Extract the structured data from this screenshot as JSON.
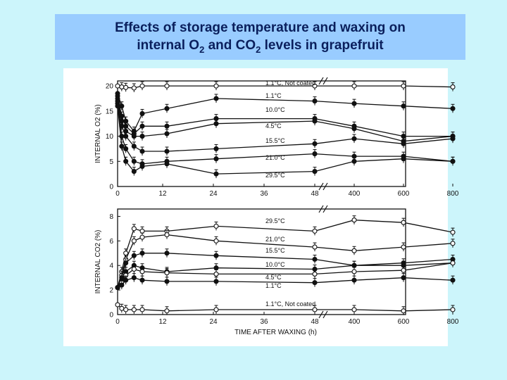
{
  "title": {
    "line1": "Effects of storage temperature and waxing on",
    "line2_a": "internal O",
    "line2_sub1": "2",
    "line2_b": " and CO",
    "line2_sub2": "2",
    "line2_c": " levels in grapefruit"
  },
  "colors": {
    "background": "#ccf5fb",
    "title_box": "#99ccff",
    "title_text": "#0a1f5c",
    "ink": "#111111"
  },
  "chart_data": [
    {
      "type": "line",
      "ylabel": "INTERNAL O2 (%)",
      "xlabel": "",
      "x_ticks": [
        "0",
        "12",
        "24",
        "36",
        "48",
        "400",
        "600",
        "800"
      ],
      "y_ticks": [
        "0",
        "5",
        "10",
        "15",
        "20"
      ],
      "ylim": [
        0,
        21
      ],
      "x": [
        0,
        1,
        2,
        4,
        6,
        12,
        24,
        48,
        400,
        600,
        800
      ],
      "series": [
        {
          "name": "1.1°C, Not coated",
          "marker": "open",
          "values": [
            20,
            19.8,
            19.7,
            19.6,
            20,
            20,
            20,
            20,
            20,
            20,
            19.8
          ]
        },
        {
          "name": "1.1°C",
          "marker": "filled",
          "values": [
            18.5,
            16,
            13,
            11,
            14.5,
            15.5,
            17.5,
            17,
            16.5,
            16,
            15.5
          ]
        },
        {
          "name": "10.0°C",
          "marker": "filled",
          "values": [
            18,
            14,
            12,
            10.5,
            12,
            12,
            13.5,
            13.5,
            12,
            10,
            10
          ]
        },
        {
          "name": "4.5°C",
          "marker": "filled",
          "values": [
            17.5,
            13,
            11,
            10,
            10,
            10.5,
            12.5,
            13,
            11.5,
            9,
            10
          ]
        },
        {
          "name": "15.5°C",
          "marker": "filled",
          "values": [
            17,
            12,
            10,
            8,
            7,
            7,
            7.5,
            8.5,
            9.5,
            8.5,
            9.5
          ]
        },
        {
          "name": "21.0°C",
          "marker": "filled",
          "values": [
            16.5,
            10,
            7.5,
            5,
            4.5,
            5,
            5.5,
            6.5,
            6,
            6,
            5
          ]
        },
        {
          "name": "29.5°C",
          "marker": "filled",
          "values": [
            16,
            8,
            5,
            3,
            4,
            4.5,
            2.5,
            3,
            5,
            5.5,
            5
          ]
        }
      ]
    },
    {
      "type": "line",
      "ylabel": "INTERNAL CO2 (%)",
      "xlabel": "TIME AFTER WAXING (h)",
      "x_ticks": [
        "0",
        "12",
        "24",
        "36",
        "48",
        "400",
        "600",
        "800"
      ],
      "y_ticks": [
        "0",
        "2",
        "4",
        "6",
        "8"
      ],
      "ylim": [
        0,
        8.6
      ],
      "x": [
        0,
        1,
        2,
        4,
        6,
        12,
        24,
        48,
        400,
        600,
        800
      ],
      "series": [
        {
          "name": "29.5°C",
          "marker": "open",
          "values": [
            2.2,
            3.5,
            5,
            7,
            6.8,
            6.8,
            7.2,
            6.8,
            7.7,
            7.5,
            6.7
          ]
        },
        {
          "name": "21.0°C",
          "marker": "open",
          "values": [
            2.2,
            3.2,
            4.5,
            6,
            6.3,
            6.5,
            6,
            5.5,
            5.2,
            5.5,
            5.8
          ]
        },
        {
          "name": "15.5°C",
          "marker": "filled",
          "values": [
            2.2,
            3,
            4.2,
            4.8,
            5,
            5,
            4.8,
            4.5,
            4,
            4.2,
            4.5
          ]
        },
        {
          "name": "10.0°C",
          "marker": "filled",
          "values": [
            2.2,
            2.8,
            3.5,
            4,
            3.8,
            3.5,
            3.8,
            3.7,
            4,
            4,
            4.2
          ]
        },
        {
          "name": "4.5°C",
          "marker": "open",
          "values": [
            2.2,
            2.6,
            3.2,
            3.7,
            3.5,
            3.4,
            3.3,
            3.3,
            3.5,
            3.6,
            4.2
          ]
        },
        {
          "name": "1.1°C",
          "marker": "filled",
          "values": [
            2.2,
            2.4,
            2.8,
            3,
            2.8,
            2.7,
            2.7,
            2.6,
            2.8,
            3,
            2.8
          ]
        },
        {
          "name": "1.1°C, Not coated",
          "marker": "open",
          "values": [
            0.8,
            0.5,
            0.4,
            0.4,
            0.4,
            0.3,
            0.4,
            0.4,
            0.4,
            0.3,
            0.4
          ]
        }
      ]
    }
  ]
}
